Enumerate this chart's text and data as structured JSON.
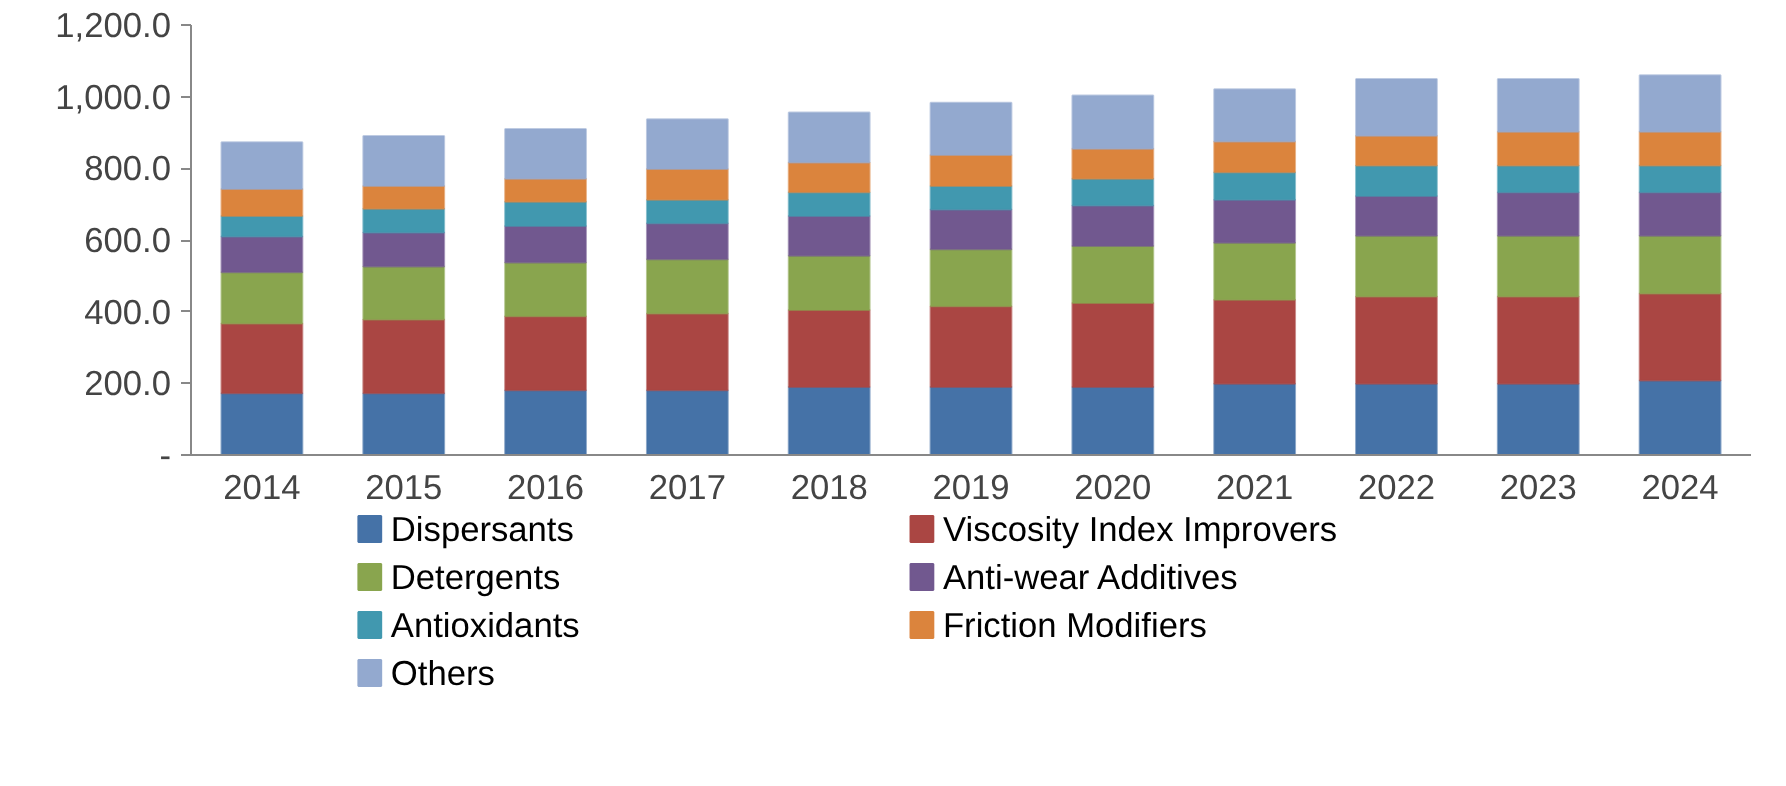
{
  "chart_data": {
    "type": "bar",
    "stacked": true,
    "categories": [
      "2014",
      "2015",
      "2016",
      "2017",
      "2018",
      "2019",
      "2020",
      "2021",
      "2022",
      "2023",
      "2024"
    ],
    "series": [
      {
        "name": "Dispersants",
        "color": "#4572a7",
        "values": [
          172,
          172,
          181,
          181,
          190,
          190,
          190,
          199,
          199,
          199,
          208
        ]
      },
      {
        "name": "Viscosity Index Improvers",
        "color": "#aa4643",
        "values": [
          195,
          206,
          206,
          214,
          215,
          225,
          234,
          234,
          243,
          243,
          243
        ]
      },
      {
        "name": "Detergents",
        "color": "#89a54e",
        "values": [
          143,
          148,
          150,
          151,
          151,
          159,
          159,
          159,
          170,
          170,
          161
        ]
      },
      {
        "name": "Anti-wear Additives",
        "color": "#71588f",
        "values": [
          100,
          95,
          102,
          101,
          111,
          111,
          113,
          120,
          111,
          121,
          121
        ]
      },
      {
        "name": "Antioxidants",
        "color": "#4198af",
        "values": [
          57,
          66,
          68,
          65,
          66,
          66,
          75,
          77,
          85,
          75,
          75
        ]
      },
      {
        "name": "Friction Modifiers",
        "color": "#db843d",
        "values": [
          75,
          64,
          64,
          86,
          83,
          86,
          84,
          86,
          83,
          94,
          94
        ]
      },
      {
        "name": "Others",
        "color": "#93a9cf",
        "values": [
          131,
          139,
          139,
          139,
          140,
          146,
          148,
          146,
          158,
          147,
          158
        ]
      }
    ],
    "ylim": [
      0,
      1200
    ],
    "yticks": [
      {
        "value": 0,
        "label": "-"
      },
      {
        "value": 200,
        "label": "200.0"
      },
      {
        "value": 400,
        "label": "400.0"
      },
      {
        "value": 600,
        "label": "600.0"
      },
      {
        "value": 800,
        "label": "800.0"
      },
      {
        "value": 1000,
        "label": "1,000.0"
      },
      {
        "value": 1200,
        "label": "1,200.0"
      }
    ],
    "legend": "bottom",
    "grid": false
  }
}
